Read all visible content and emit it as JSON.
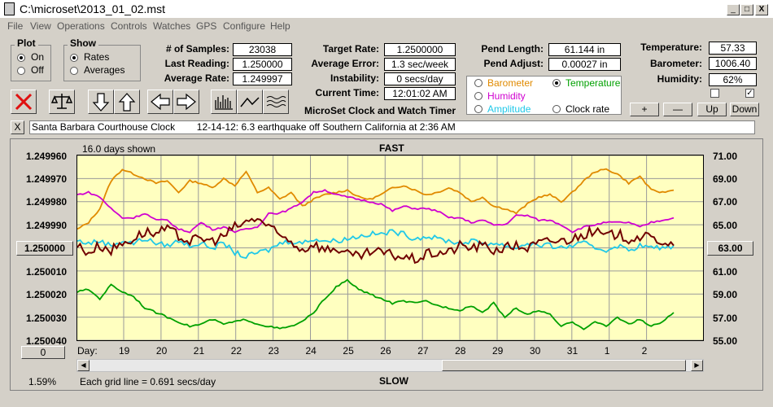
{
  "window": {
    "title": "C:\\microset\\2013_01_02.mst",
    "min": "_",
    "max": "□",
    "close": "X"
  },
  "menu": [
    "File",
    "View",
    "Operations",
    "Controls",
    "Watches",
    "GPS",
    "Configure",
    "Help"
  ],
  "plot_group": {
    "title": "Plot",
    "on": "On",
    "off": "Off",
    "selected": "On"
  },
  "show_group": {
    "title": "Show",
    "rates": "Rates",
    "averages": "Averages",
    "selected": "Rates"
  },
  "stats": {
    "samples_label": "# of Samples:",
    "samples": "23038",
    "last_label": "Last Reading:",
    "last": "1.250000",
    "avg_label": "Average Rate:",
    "avg": "1.249997",
    "target_label": "Target Rate:",
    "target": "1.2500000",
    "avgerr_label": "Average Error:",
    "avgerr": "1.3 sec/week",
    "instab_label": "Instability:",
    "instab": "0 secs/day",
    "time_label": "Current Time:",
    "time": "12:01:02 AM",
    "pendlen_label": "Pend Length:",
    "pendlen": "61.144 in",
    "pendadj_label": "Pend Adjust:",
    "pendadj": "0.00027 in",
    "temp_label": "Temperature:",
    "temp": "57.33",
    "baro_label": "Barometer:",
    "baro": "1006.40",
    "hum_label": "Humidity:",
    "hum": "62%"
  },
  "sensors": {
    "barometer": "Barometer",
    "temperature": "Temperature",
    "humidity": "Humidity",
    "amplitude": "Amplitude",
    "clockrate": "Clock rate",
    "selected": "Temperature",
    "colors": {
      "barometer": "#e08a00",
      "temperature": "#00a000",
      "humidity": "#d000d0",
      "amplitude": "#20c8e8",
      "clockrate": "#000000"
    }
  },
  "buttons": {
    "plus": "+",
    "minus": "—",
    "up": "Up",
    "down": "Down"
  },
  "app_title": "MicroSet Clock and Watch Timer",
  "note": {
    "close": "X",
    "text": "Santa Barbara Courthouse Clock        12-14-12: 6.3 earthquake off Southern California at 2:36 AM"
  },
  "chart": {
    "days_shown": "16.0 days shown",
    "fast": "FAST",
    "slow": "SLOW",
    "grid_note": "Each grid line = 0.691 secs/day",
    "percent": "1.59%",
    "left_button": "1.250000",
    "right_button": "63.00",
    "bottom_left_button": "0",
    "day_prefix": "Day:"
  },
  "chart_data": {
    "type": "line",
    "x_ticks": [
      "19",
      "20",
      "21",
      "22",
      "23",
      "24",
      "25",
      "26",
      "27",
      "28",
      "29",
      "30",
      "31",
      "1",
      "2"
    ],
    "y_left_ticks": [
      "1.249960",
      "1.249970",
      "1.249980",
      "1.249990",
      "1.250000",
      "1.250010",
      "1.250020",
      "1.250030",
      "1.250040"
    ],
    "y_left_range": [
      1.24996,
      1.25004
    ],
    "y_right_ticks": [
      "71.00",
      "69.00",
      "67.00",
      "65.00",
      "63.00",
      "61.00",
      "59.00",
      "57.00",
      "55.00"
    ],
    "y_right_range": [
      55,
      71
    ],
    "grid": true,
    "series": [
      {
        "name": "Barometer",
        "color": "#e08a00",
        "y": [
          64.6,
          65.2,
          66.4,
          68.8,
          69.8,
          69.4,
          69.0,
          68.6,
          68.8,
          67.8,
          68.8,
          68.6,
          68.2,
          69.0,
          68.4,
          69.6,
          67.8,
          68.2,
          67.2,
          67.8,
          66.6,
          67.2,
          67.6,
          67.8,
          68.0,
          67.4,
          67.2,
          67.6,
          68.2,
          68.4,
          68.0,
          67.6,
          67.8,
          68.2,
          67.8,
          67.0,
          67.4,
          66.6,
          66.4,
          66.0,
          66.8,
          67.4,
          67.6,
          67.0,
          67.8,
          68.8,
          69.6,
          69.8,
          69.4,
          68.6,
          69.2,
          68.0,
          67.8,
          68.0
        ]
      },
      {
        "name": "Humidity",
        "color": "#d000d0",
        "y": [
          67.6,
          67.8,
          67.4,
          66.4,
          65.6,
          65.6,
          66.0,
          65.4,
          65.4,
          64.6,
          64.4,
          65.2,
          64.6,
          64.8,
          64.4,
          64.6,
          64.8,
          66.0,
          66.0,
          66.4,
          67.0,
          67.8,
          68.0,
          67.6,
          67.4,
          67.2,
          67.0,
          66.8,
          66.2,
          66.6,
          66.4,
          66.4,
          66.2,
          65.6,
          65.6,
          65.2,
          65.4,
          65.0,
          65.0,
          65.8,
          65.8,
          65.4,
          65.4,
          65.0,
          64.4,
          64.8,
          65.0,
          65.2,
          65.2,
          65.2,
          64.8,
          65.2,
          65.4,
          65.6
        ]
      },
      {
        "name": "Amplitude",
        "color": "#20c8e8",
        "y": [
          63.6,
          63.4,
          63.6,
          63.2,
          63.6,
          63.4,
          63.8,
          63.4,
          63.2,
          63.6,
          63.2,
          63.4,
          63.0,
          63.4,
          62.6,
          62.2,
          62.6,
          62.8,
          63.4,
          63.6,
          63.4,
          63.8,
          63.6,
          63.6,
          63.8,
          64.0,
          64.2,
          64.2,
          64.4,
          64.2,
          63.8,
          64.0,
          63.8,
          63.6,
          63.4,
          63.6,
          63.4,
          63.4,
          63.2,
          63.0,
          63.4,
          63.2,
          63.2,
          63.0,
          63.2,
          63.4,
          63.0,
          62.8,
          63.2,
          62.8,
          63.2,
          63.0,
          63.0,
          63.2
        ]
      },
      {
        "name": "Clock rate",
        "color": "#700000",
        "y": [
          63.2,
          62.6,
          63.2,
          62.8,
          63.4,
          63.8,
          64.4,
          64.2,
          64.6,
          64.0,
          63.6,
          63.8,
          63.6,
          64.0,
          64.8,
          65.2,
          65.6,
          64.8,
          64.0,
          63.6,
          62.8,
          63.4,
          62.8,
          63.0,
          62.4,
          62.2,
          62.6,
          62.6,
          62.4,
          62.2,
          62.0,
          62.4,
          62.6,
          62.6,
          63.2,
          63.0,
          63.2,
          62.8,
          63.0,
          63.2,
          63.0,
          63.4,
          63.6,
          63.6,
          63.8,
          64.2,
          64.4,
          64.0,
          64.2,
          63.8,
          64.0,
          63.8,
          63.6,
          63.2
        ]
      },
      {
        "name": "Temperature",
        "color": "#00a000",
        "y": [
          59.2,
          59.4,
          58.6,
          59.8,
          59.2,
          58.8,
          57.8,
          57.4,
          57.0,
          56.6,
          56.2,
          56.4,
          56.8,
          56.4,
          56.6,
          56.8,
          56.4,
          56.2,
          56.0,
          56.2,
          56.6,
          57.4,
          58.6,
          59.6,
          60.2,
          59.4,
          59.0,
          58.6,
          58.2,
          58.4,
          58.2,
          58.4,
          58.0,
          57.8,
          57.6,
          58.0,
          57.4,
          58.2,
          57.0,
          57.8,
          57.2,
          57.6,
          57.2,
          56.2,
          56.6,
          56.0,
          56.6,
          56.2,
          57.0,
          56.4,
          56.8,
          56.2,
          56.6,
          57.4
        ]
      }
    ]
  }
}
